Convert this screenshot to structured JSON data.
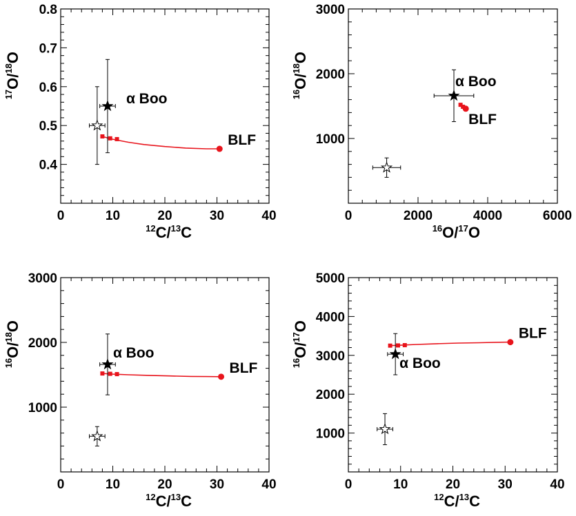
{
  "colors": {
    "model": "#e8141c",
    "data": "#000000"
  },
  "chart_data": [
    {
      "type": "scatter",
      "xlabel": {
        "sup1": "12",
        "main1": "C/",
        "sup2": "13",
        "main2": "C"
      },
      "ylabel": {
        "sup1": "17",
        "main1": "O/",
        "sup2": "18",
        "main2": "O"
      },
      "xlim": [
        0,
        40
      ],
      "ylim": [
        0.3,
        0.8
      ],
      "xticks": [
        0,
        10,
        20,
        30,
        40
      ],
      "xtick_labels": [
        "0",
        "10",
        "20",
        "30",
        "40"
      ],
      "yticks": [
        0.4,
        0.5,
        0.6,
        0.7,
        0.8
      ],
      "ytick_labels": [
        "0.4",
        "0.5",
        "0.6",
        "0.7",
        "0.8"
      ],
      "model_curve": {
        "x": [
          8,
          9.5,
          11,
          13,
          16,
          20,
          24,
          28,
          30.5
        ],
        "y": [
          0.472,
          0.466,
          0.462,
          0.457,
          0.451,
          0.446,
          0.442,
          0.44,
          0.44
        ]
      },
      "model_points": [
        {
          "x": 8,
          "y": 0.472
        },
        {
          "x": 9.5,
          "y": 0.467
        },
        {
          "x": 10.8,
          "y": 0.465
        }
      ],
      "blf_point": {
        "x": 30.5,
        "y": 0.44,
        "label": "BLF"
      },
      "filled_star": {
        "x": 9,
        "y": 0.55,
        "xerr": 1.5,
        "yerr": 0.12,
        "label": "α Boo"
      },
      "open_star": {
        "x": 7,
        "y": 0.5,
        "xerr": 1.5,
        "yerr": 0.1
      }
    },
    {
      "type": "scatter",
      "xlabel": {
        "sup1": "16",
        "main1": "O/",
        "sup2": "17",
        "main2": "O"
      },
      "ylabel": {
        "sup1": "16",
        "main1": "O/",
        "sup2": "18",
        "main2": "O"
      },
      "xlim": [
        0,
        6000
      ],
      "ylim": [
        0,
        3000
      ],
      "xticks": [
        0,
        2000,
        4000,
        6000
      ],
      "xtick_labels": [
        "0",
        "2000",
        "4000",
        "6000"
      ],
      "yticks": [
        1000,
        2000,
        3000
      ],
      "ytick_labels": [
        "1000",
        "2000",
        "3000"
      ],
      "model_curve": {
        "x": [
          3200,
          3300,
          3380
        ],
        "y": [
          1530,
          1490,
          1460
        ]
      },
      "model_points": [
        {
          "x": 3220,
          "y": 1520
        },
        {
          "x": 3290,
          "y": 1490
        }
      ],
      "blf_point": {
        "x": 3370,
        "y": 1460,
        "label": "BLF"
      },
      "filled_star": {
        "x": 3030,
        "y": 1660,
        "xerr": 570,
        "yerr": 400,
        "label": "α Boo"
      },
      "open_star": {
        "x": 1100,
        "y": 550,
        "xerr": 400,
        "yerr": 150
      }
    },
    {
      "type": "scatter",
      "xlabel": {
        "sup1": "12",
        "main1": "C/",
        "sup2": "13",
        "main2": "C"
      },
      "ylabel": {
        "sup1": "16",
        "main1": "O/",
        "sup2": "18",
        "main2": "O"
      },
      "xlim": [
        0,
        40
      ],
      "ylim": [
        0,
        3000
      ],
      "xticks": [
        0,
        10,
        20,
        30,
        40
      ],
      "xtick_labels": [
        "0",
        "10",
        "20",
        "30",
        "40"
      ],
      "yticks": [
        1000,
        2000,
        3000
      ],
      "ytick_labels": [
        "1000",
        "2000",
        "3000"
      ],
      "model_curve": {
        "x": [
          8,
          10,
          13,
          17,
          21,
          25,
          28,
          30.8
        ],
        "y": [
          1520,
          1510,
          1500,
          1490,
          1482,
          1475,
          1472,
          1470
        ]
      },
      "model_points": [
        {
          "x": 8,
          "y": 1520
        },
        {
          "x": 9.5,
          "y": 1515
        },
        {
          "x": 10.8,
          "y": 1510
        }
      ],
      "blf_point": {
        "x": 30.8,
        "y": 1470,
        "label": "BLF"
      },
      "filled_star": {
        "x": 9,
        "y": 1660,
        "xerr": 1.5,
        "yerr": 470,
        "label": "α Boo"
      },
      "open_star": {
        "x": 7,
        "y": 550,
        "xerr": 1.5,
        "yerr": 150
      }
    },
    {
      "type": "scatter",
      "xlabel": {
        "sup1": "12",
        "main1": "C/",
        "sup2": "13",
        "main2": "C"
      },
      "ylabel": {
        "sup1": "16",
        "main1": "O/",
        "sup2": "17",
        "main2": "O"
      },
      "xlim": [
        0,
        40
      ],
      "ylim": [
        0,
        5000
      ],
      "xticks": [
        0,
        10,
        20,
        30,
        40
      ],
      "xtick_labels": [
        "0",
        "10",
        "20",
        "30",
        "40"
      ],
      "yticks": [
        1000,
        2000,
        3000,
        4000,
        5000
      ],
      "ytick_labels": [
        "1000",
        "2000",
        "3000",
        "4000",
        "5000"
      ],
      "model_curve": {
        "x": [
          8,
          10,
          13,
          17,
          21,
          25,
          28,
          31
        ],
        "y": [
          3250,
          3260,
          3280,
          3300,
          3315,
          3325,
          3335,
          3340
        ]
      },
      "model_points": [
        {
          "x": 8,
          "y": 3250
        },
        {
          "x": 9.5,
          "y": 3255
        },
        {
          "x": 10.8,
          "y": 3262
        }
      ],
      "blf_point": {
        "x": 31,
        "y": 3340,
        "label": "BLF"
      },
      "filled_star": {
        "x": 9,
        "y": 3030,
        "xerr": 1.5,
        "yerr": 530,
        "label": "α Boo"
      },
      "open_star": {
        "x": 7,
        "y": 1100,
        "xerr": 1.5,
        "yerr": 400
      }
    }
  ]
}
